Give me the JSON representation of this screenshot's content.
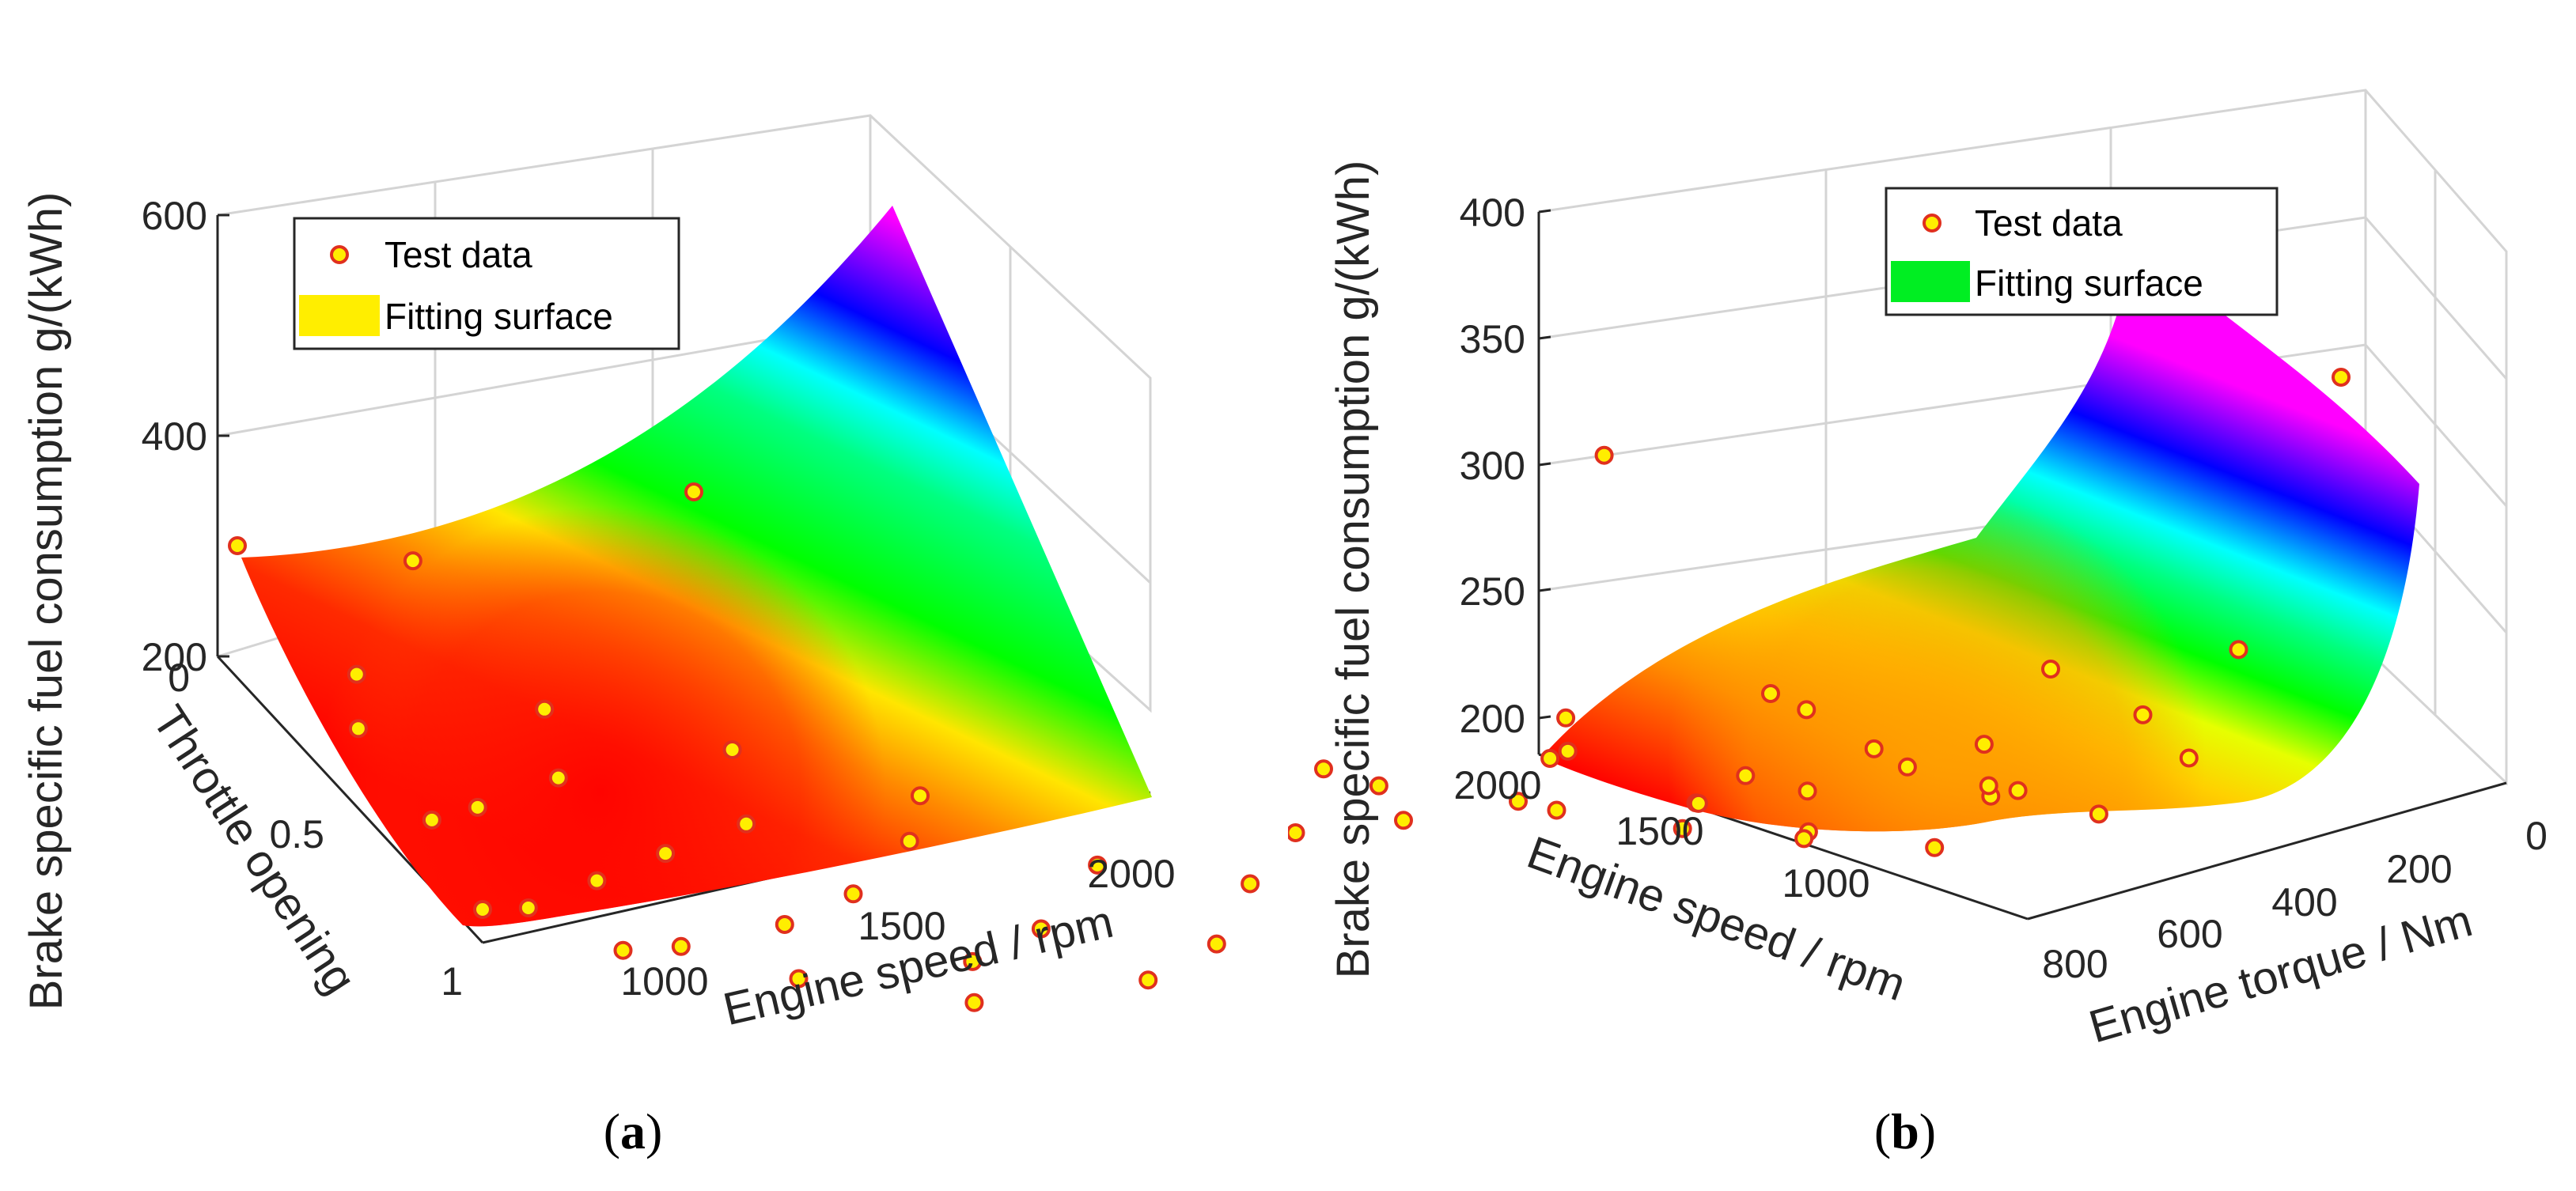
{
  "figure": {
    "panels": [
      {
        "caption_open": "(",
        "caption_letter": "a",
        "caption_close": ")",
        "legend": {
          "points": "Test data",
          "surface": "Fitting surface"
        },
        "zlabel": "Brake specific fuel consumption g/(kWh)",
        "xlabel": "Engine speed / rpm",
        "ylabel": "Throttle opening",
        "zticks": [
          "200",
          "400",
          "600"
        ],
        "xticks": [
          "1000",
          "1500",
          "2000"
        ],
        "yticks": [
          "0",
          "0.5",
          "1"
        ]
      },
      {
        "caption_open": "(",
        "caption_letter": "b",
        "caption_close": ")",
        "legend": {
          "points": "Test data",
          "surface": "Fitting surface"
        },
        "zlabel": "Brake specific fuel consumption g/(kWh)",
        "xlabel": "Engine torque / Nm",
        "ylabel": "Engine speed / rpm",
        "zticks": [
          "200",
          "250",
          "300",
          "350",
          "400"
        ],
        "xticks": [
          "0",
          "200",
          "400",
          "600",
          "800"
        ],
        "yticks": [
          "1000",
          "1500",
          "2000"
        ]
      }
    ]
  },
  "chart_data": [
    {
      "type": "surface",
      "title": "",
      "x_axis": {
        "label": "Engine speed / rpm",
        "range": [
          800,
          2100
        ],
        "ticks": [
          1000,
          1500,
          2000
        ]
      },
      "y_axis": {
        "label": "Throttle opening",
        "range": [
          0,
          1
        ],
        "ticks": [
          0,
          0.5,
          1
        ]
      },
      "z_axis": {
        "label": "Brake specific fuel consumption g/(kWh)",
        "range": [
          200,
          600
        ],
        "ticks": [
          200,
          400,
          600
        ]
      },
      "colormap": "hsv (red low, yellow, green, cyan, blue, magenta high)",
      "legend_position": "top-left",
      "series": [
        {
          "name": "Test data",
          "marker": "circle",
          "marker_fill": "#ffee00",
          "marker_edge": "#e0301e",
          "points": [
            {
              "x": 800,
              "y": 0.0,
              "z": 300
            },
            {
              "x": 1050,
              "y": 0.0,
              "z": 310
            },
            {
              "x": 1450,
              "y": 0.0,
              "z": 410
            },
            {
              "x": 900,
              "y": 0.2,
              "z": 245
            },
            {
              "x": 1150,
              "y": 0.25,
              "z": 250
            },
            {
              "x": 1400,
              "y": 0.3,
              "z": 250
            },
            {
              "x": 1650,
              "y": 0.35,
              "z": 245
            },
            {
              "x": 850,
              "y": 0.35,
              "z": 230
            },
            {
              "x": 1100,
              "y": 0.45,
              "z": 235
            },
            {
              "x": 1350,
              "y": 0.5,
              "z": 230
            },
            {
              "x": 1600,
              "y": 0.45,
              "z": 225
            },
            {
              "x": 1850,
              "y": 0.5,
              "z": 240
            },
            {
              "x": 2050,
              "y": 0.55,
              "z": 255
            },
            {
              "x": 950,
              "y": 0.55,
              "z": 220
            },
            {
              "x": 1200,
              "y": 0.6,
              "z": 215
            },
            {
              "x": 1450,
              "y": 0.65,
              "z": 215
            },
            {
              "x": 1700,
              "y": 0.7,
              "z": 220
            },
            {
              "x": 1950,
              "y": 0.7,
              "z": 230
            },
            {
              "x": 850,
              "y": 0.65,
              "z": 225
            },
            {
              "x": 1050,
              "y": 0.75,
              "z": 215
            },
            {
              "x": 1300,
              "y": 0.8,
              "z": 212
            },
            {
              "x": 1550,
              "y": 0.85,
              "z": 215
            },
            {
              "x": 1800,
              "y": 0.85,
              "z": 222
            },
            {
              "x": 2050,
              "y": 0.9,
              "z": 235
            },
            {
              "x": 900,
              "y": 0.9,
              "z": 215
            },
            {
              "x": 1100,
              "y": 0.95,
              "z": 212
            },
            {
              "x": 800,
              "y": 1.0,
              "z": 230
            },
            {
              "x": 1000,
              "y": 1.0,
              "z": 212
            },
            {
              "x": 1250,
              "y": 1.0,
              "z": 210
            },
            {
              "x": 1500,
              "y": 1.0,
              "z": 212
            }
          ]
        },
        {
          "name": "Fitting surface",
          "kind": "fitted surface"
        }
      ]
    },
    {
      "type": "surface",
      "title": "",
      "x_axis": {
        "label": "Engine torque / Nm",
        "range": [
          0,
          850
        ],
        "ticks": [
          0,
          200,
          400,
          600,
          800
        ]
      },
      "y_axis": {
        "label": "Engine speed / rpm",
        "range": [
          800,
          2100
        ],
        "ticks": [
          1000,
          1500,
          2000
        ]
      },
      "z_axis": {
        "label": "Brake specific fuel consumption g/(kWh)",
        "range": [
          185,
          400
        ],
        "ticks": [
          200,
          250,
          300,
          350,
          400
        ]
      },
      "colormap": "hsv (red low, yellow, green, cyan, blue, magenta high)",
      "legend_position": "top-right",
      "series": [
        {
          "name": "Test data",
          "marker": "circle",
          "marker_fill": "#ffee00",
          "marker_edge": "#e0301e",
          "points": [
            {
              "x": 30,
              "y": 1000,
              "z": 345
            },
            {
              "x": 20,
              "y": 2000,
              "z": 305
            },
            {
              "x": 80,
              "y": 1100,
              "z": 240
            },
            {
              "x": 150,
              "y": 1300,
              "z": 235
            },
            {
              "x": 250,
              "y": 1100,
              "z": 225
            },
            {
              "x": 320,
              "y": 1500,
              "z": 228
            },
            {
              "x": 400,
              "y": 1200,
              "z": 222
            },
            {
              "x": 480,
              "y": 1700,
              "z": 220
            },
            {
              "x": 560,
              "y": 1400,
              "z": 218
            },
            {
              "x": 650,
              "y": 1900,
              "z": 222
            },
            {
              "x": 760,
              "y": 2100,
              "z": 226
            },
            {
              "x": 800,
              "y": 1000,
              "z": 240
            },
            {
              "x": 120,
              "y": 1700,
              "z": 220
            },
            {
              "x": 220,
              "y": 1900,
              "z": 215
            },
            {
              "x": 300,
              "y": 1000,
              "z": 212
            },
            {
              "x": 380,
              "y": 1800,
              "z": 210
            },
            {
              "x": 450,
              "y": 1400,
              "z": 205
            },
            {
              "x": 520,
              "y": 1100,
              "z": 210
            },
            {
              "x": 600,
              "y": 2000,
              "z": 212
            },
            {
              "x": 700,
              "y": 1600,
              "z": 215
            },
            {
              "x": 780,
              "y": 1300,
              "z": 222
            },
            {
              "x": 200,
              "y": 1500,
              "z": 205
            },
            {
              "x": 340,
              "y": 1200,
              "z": 200
            },
            {
              "x": 420,
              "y": 2000,
              "z": 200
            },
            {
              "x": 500,
              "y": 1700,
              "z": 198
            },
            {
              "x": 580,
              "y": 1300,
              "z": 198
            },
            {
              "x": 640,
              "y": 1800,
              "z": 202
            },
            {
              "x": 720,
              "y": 1200,
              "z": 205
            },
            {
              "x": 260,
              "y": 1300,
              "z": 196
            },
            {
              "x": 460,
              "y": 1000,
              "z": 200
            },
            {
              "x": 540,
              "y": 1500,
              "z": 195
            },
            {
              "x": 620,
              "y": 1100,
              "z": 196
            },
            {
              "x": 380,
              "y": 1600,
              "z": 194
            },
            {
              "x": 700,
              "y": 1900,
              "z": 200
            }
          ]
        },
        {
          "name": "Fitting surface",
          "kind": "fitted surface"
        }
      ]
    }
  ]
}
